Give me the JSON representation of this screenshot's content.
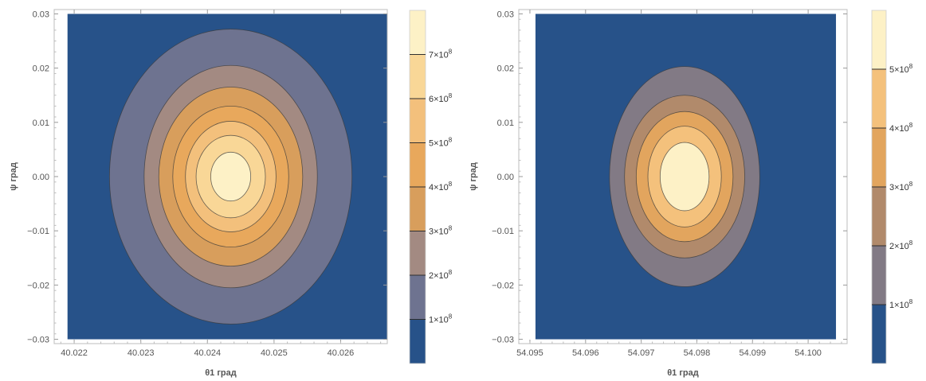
{
  "chart_data": [
    {
      "type": "contour",
      "xlabel": "θ1 град",
      "ylabel": "ψ град",
      "x_ticks": [
        "40.022",
        "40.023",
        "40.024",
        "40.025",
        "40.026"
      ],
      "x_tick_values": [
        40.022,
        40.023,
        40.024,
        40.025,
        40.026
      ],
      "y_ticks": [
        "0.03",
        "0.02",
        "0.01",
        "0.00",
        "−0.01",
        "−0.02",
        "−0.03"
      ],
      "y_tick_values": [
        0.03,
        0.02,
        0.01,
        0.0,
        -0.01,
        -0.02,
        -0.03
      ],
      "xlim": [
        40.0217,
        40.0267
      ],
      "ylim": [
        -0.0308,
        0.0308
      ],
      "data_extent": {
        "x": [
          40.0219,
          40.0267
        ],
        "y": [
          -0.03,
          0.03
        ]
      },
      "peak": {
        "x": 40.02435,
        "y": 0.0,
        "value": 800000000
      },
      "contour_levels": [
        100000000,
        200000000,
        300000000,
        400000000,
        500000000,
        600000000,
        700000000
      ],
      "contour_radii": [
        {
          "level": 100000000,
          "rx": 0.00182,
          "ry": 0.0272
        },
        {
          "level": 200000000,
          "rx": 0.0013,
          "ry": 0.0205
        },
        {
          "level": 300000000,
          "rx": 0.00108,
          "ry": 0.0165
        },
        {
          "level": 400000000,
          "rx": 0.00087,
          "ry": 0.013
        },
        {
          "level": 500000000,
          "rx": 0.00068,
          "ry": 0.0102
        },
        {
          "level": 600000000,
          "rx": 0.00052,
          "ry": 0.0076
        },
        {
          "level": 700000000,
          "rx": 0.0003,
          "ry": 0.0045
        }
      ],
      "colorbar": {
        "range": [
          0,
          800000000
        ],
        "labels": [
          {
            "value": 100000000,
            "mantissa": "1",
            "exponent": "8"
          },
          {
            "value": 200000000,
            "mantissa": "2",
            "exponent": "8"
          },
          {
            "value": 300000000,
            "mantissa": "3",
            "exponent": "8"
          },
          {
            "value": 400000000,
            "mantissa": "4",
            "exponent": "8"
          },
          {
            "value": 500000000,
            "mantissa": "5",
            "exponent": "8"
          },
          {
            "value": 600000000,
            "mantissa": "6",
            "exponent": "8"
          },
          {
            "value": 700000000,
            "mantissa": "7",
            "exponent": "8"
          }
        ]
      },
      "band_colors": [
        "#275289",
        "#6e7390",
        "#a38a82",
        "#d89e5c",
        "#e8a85c",
        "#f3c07c",
        "#f9d797",
        "#fdf1c6"
      ]
    },
    {
      "type": "contour",
      "xlabel": "θ1 град",
      "ylabel": "ψ град",
      "x_ticks": [
        "54.095",
        "54.096",
        "54.097",
        "54.098",
        "54.099",
        "54.100"
      ],
      "x_tick_values": [
        54.095,
        54.096,
        54.097,
        54.098,
        54.099,
        54.1
      ],
      "y_ticks": [
        "0.03",
        "0.02",
        "0.01",
        "0.00",
        "−0.01",
        "−0.02",
        "−0.03"
      ],
      "y_tick_values": [
        0.03,
        0.02,
        0.01,
        0.0,
        -0.01,
        -0.02,
        -0.03
      ],
      "xlim": [
        54.0948,
        54.1007
      ],
      "ylim": [
        -0.0308,
        0.0308
      ],
      "data_extent": {
        "x": [
          54.0951,
          54.1005
        ],
        "y": [
          -0.03,
          0.03
        ]
      },
      "peak": {
        "x": 54.09778,
        "y": 0.0,
        "value": 600000000
      },
      "contour_levels": [
        100000000,
        200000000,
        300000000,
        400000000,
        500000000
      ],
      "contour_radii": [
        {
          "level": 100000000,
          "rx": 0.00135,
          "ry": 0.0203
        },
        {
          "level": 200000000,
          "rx": 0.00108,
          "ry": 0.015
        },
        {
          "level": 300000000,
          "rx": 0.00087,
          "ry": 0.012
        },
        {
          "level": 400000000,
          "rx": 0.00066,
          "ry": 0.0093
        },
        {
          "level": 500000000,
          "rx": 0.00044,
          "ry": 0.0063
        }
      ],
      "colorbar": {
        "range": [
          0,
          600000000
        ],
        "labels": [
          {
            "value": 100000000,
            "mantissa": "1",
            "exponent": "8"
          },
          {
            "value": 200000000,
            "mantissa": "2",
            "exponent": "8"
          },
          {
            "value": 300000000,
            "mantissa": "3",
            "exponent": "8"
          },
          {
            "value": 400000000,
            "mantissa": "4",
            "exponent": "8"
          },
          {
            "value": 500000000,
            "mantissa": "5",
            "exponent": "8"
          }
        ]
      },
      "band_colors": [
        "#275289",
        "#827a85",
        "#b18a6b",
        "#e2a55e",
        "#f4c17c",
        "#fdf1c6"
      ]
    }
  ]
}
